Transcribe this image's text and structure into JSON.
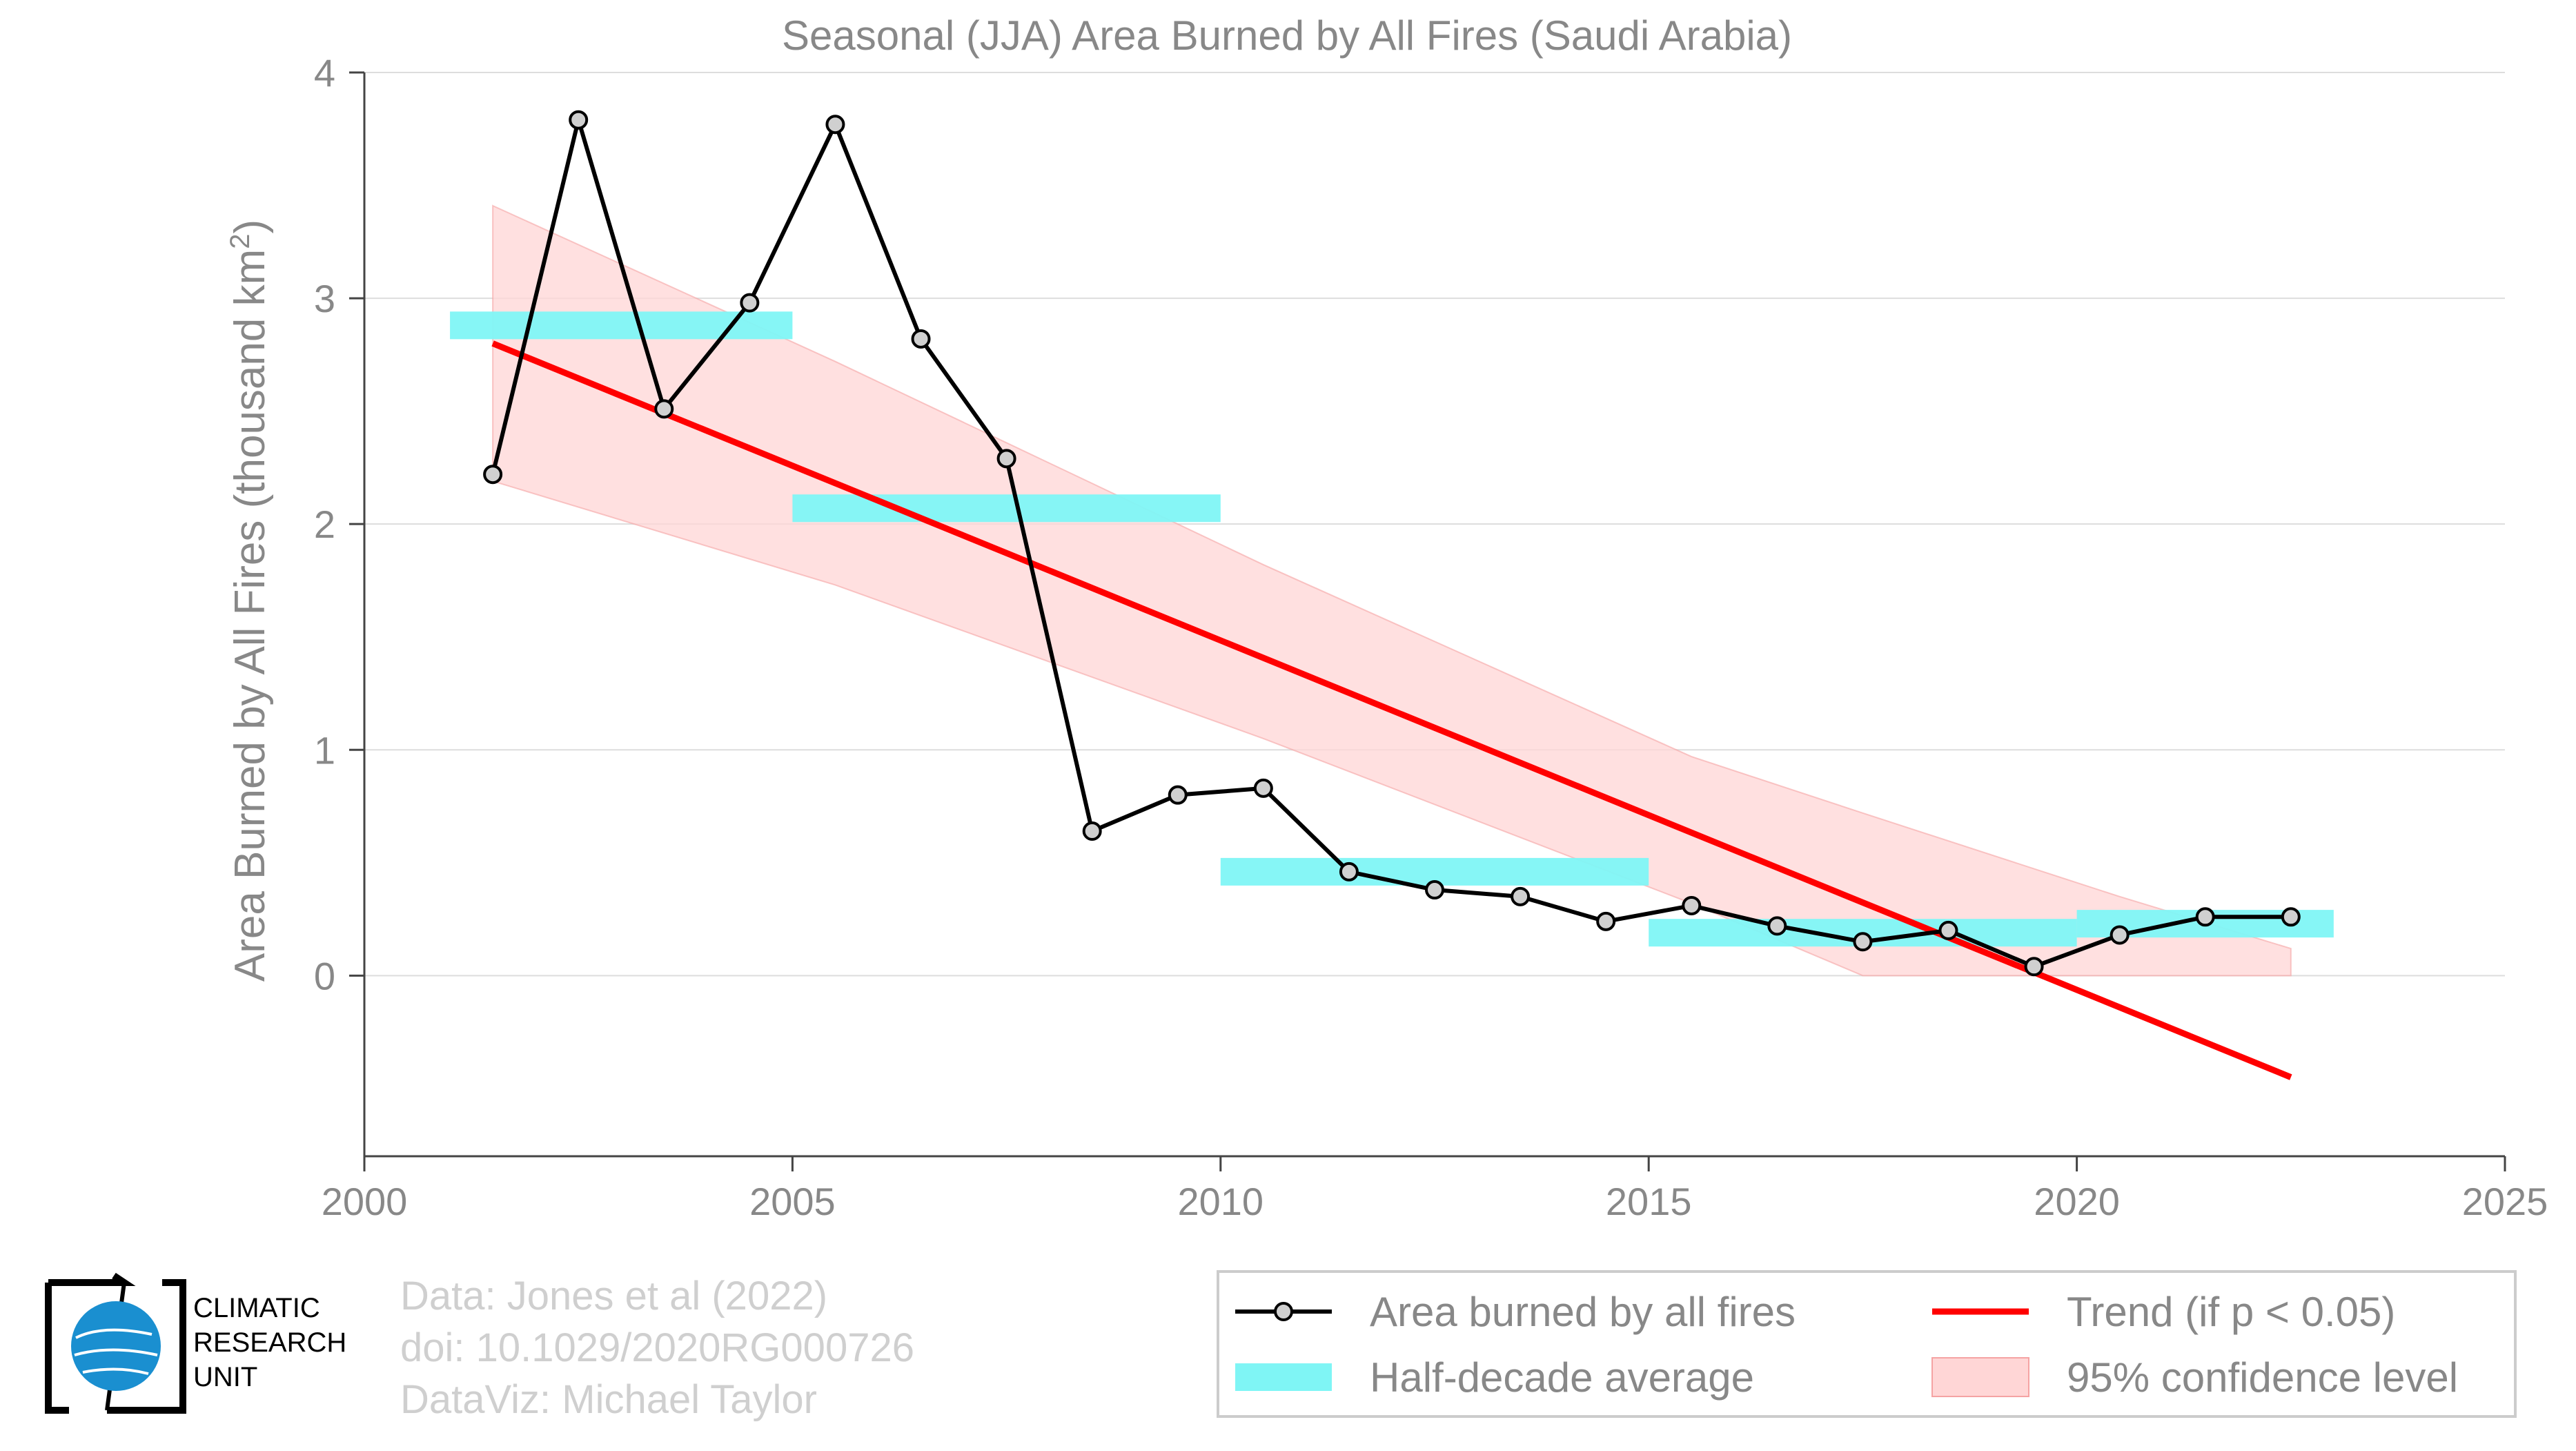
{
  "chart_data": {
    "type": "line",
    "title": "Seasonal (JJA) Area Burned by All Fires (Saudi Arabia)",
    "xlabel": "",
    "ylabel": "Area Burned by All Fires (thousand km",
    "ylabel_sup": "2",
    "ylabel_end": ")",
    "xlim": [
      2000,
      2025
    ],
    "ylim": [
      -0.8,
      4
    ],
    "xticks": [
      2000,
      2005,
      2010,
      2015,
      2020,
      2025
    ],
    "yticks": [
      0,
      1,
      2,
      3,
      4
    ],
    "grid": true,
    "legend_position": "bottom-right",
    "series": [
      {
        "name": "Area burned by all fires",
        "kind": "line-markers",
        "color": "#000000",
        "x": [
          2001.5,
          2002.5,
          2003.5,
          2004.5,
          2005.5,
          2006.5,
          2007.5,
          2008.5,
          2009.5,
          2010.5,
          2011.5,
          2012.5,
          2013.5,
          2014.5,
          2015.5,
          2016.5,
          2017.5,
          2018.5,
          2019.5,
          2020.5,
          2021.5,
          2022.5
        ],
        "y": [
          2.22,
          3.79,
          2.51,
          2.98,
          3.77,
          2.82,
          2.29,
          0.64,
          0.8,
          0.83,
          0.46,
          0.38,
          0.35,
          0.24,
          0.31,
          0.22,
          0.15,
          0.2,
          0.04,
          0.18,
          0.26,
          0.26
        ]
      },
      {
        "name": "Half-decade average",
        "kind": "steps",
        "color": "#7ff5f5",
        "segments": [
          {
            "x0": 2001,
            "x1": 2005,
            "y": 2.88
          },
          {
            "x0": 2005,
            "x1": 2010,
            "y": 2.07
          },
          {
            "x0": 2010,
            "x1": 2015,
            "y": 0.46
          },
          {
            "x0": 2015,
            "x1": 2020,
            "y": 0.19
          },
          {
            "x0": 2020,
            "x1": 2023,
            "y": 0.23
          }
        ]
      },
      {
        "name": "Trend (if p < 0.05)",
        "kind": "trend",
        "color": "#ff0000",
        "x": [
          2001.5,
          2022.5
        ],
        "y": [
          2.8,
          -0.45
        ]
      },
      {
        "name": "95% confidence level",
        "kind": "band",
        "color": "#ffd6d6",
        "x": [
          2001.5,
          2005.5,
          2010.5,
          2015.5,
          2017.5,
          2020.5,
          2022.5
        ],
        "upper": [
          3.41,
          2.72,
          1.82,
          0.97,
          0.72,
          0.35,
          0.12
        ],
        "lower": [
          2.19,
          1.73,
          1.05,
          0.32,
          0.0,
          0.0,
          0.0
        ]
      }
    ]
  },
  "legend": [
    {
      "label": "Area burned by all fires",
      "kind": "line-markers",
      "color": "#000000"
    },
    {
      "label": "Trend (if p < 0.05)",
      "kind": "trend",
      "color": "#ff0000"
    },
    {
      "label": "Half-decade average",
      "kind": "steps",
      "color": "#7ff5f5"
    },
    {
      "label": "95% confidence level",
      "kind": "band",
      "color": "#ffd6d6"
    }
  ],
  "credits": {
    "line1": "Data: Jones et al (2022)",
    "line2": "doi: 10.1029/2020RG000726",
    "line3": "DataViz: Michael Taylor"
  },
  "logo": {
    "line1": "CLIMATIC",
    "line2": "RESEARCH",
    "line3": "UNIT"
  },
  "colors": {
    "axis_text": "#888888",
    "grid": "#dddddd",
    "credits": "#cfcfcf"
  }
}
